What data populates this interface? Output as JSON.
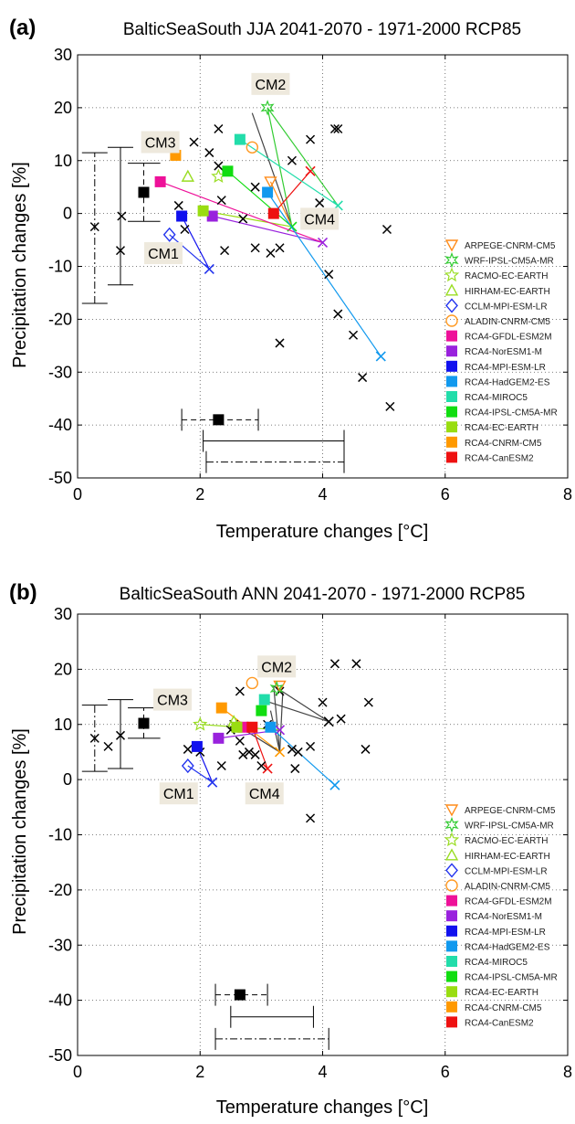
{
  "legend_entries": [
    {
      "name": "ARPEGE-CNRM-CM5",
      "marker": "tri-down-open",
      "color": "#ff8c1a"
    },
    {
      "name": "WRF-IPSL-CM5A-MR",
      "marker": "hexagram-open",
      "color": "#33cc33"
    },
    {
      "name": "RACMO-EC-EARTH",
      "marker": "star-open",
      "color": "#99dd22"
    },
    {
      "name": "HIRHAM-EC-EARTH",
      "marker": "tri-up-open",
      "color": "#99dd22"
    },
    {
      "name": "CCLM-MPI-ESM-LR",
      "marker": "diamond-open",
      "color": "#2233ee"
    },
    {
      "name": "ALADIN-CNRM-CM5",
      "marker": "circle-open",
      "color": "#ff9922"
    },
    {
      "name": "RCA4-GFDL-ESM2M",
      "marker": "square",
      "color": "#ee1199"
    },
    {
      "name": "RCA4-NorESM1-M",
      "marker": "square",
      "color": "#9922dd"
    },
    {
      "name": "RCA4-MPI-ESM-LR",
      "marker": "square",
      "color": "#1111ee"
    },
    {
      "name": "RCA4-HadGEM2-ES",
      "marker": "square",
      "color": "#1199ee"
    },
    {
      "name": "RCA4-MIROC5",
      "marker": "square",
      "color": "#22ddaa"
    },
    {
      "name": "RCA4-IPSL-CM5A-MR",
      "marker": "square",
      "color": "#11dd11"
    },
    {
      "name": "RCA4-EC-EARTH",
      "marker": "square",
      "color": "#99dd11"
    },
    {
      "name": "RCA4-CNRM-CM5",
      "marker": "square",
      "color": "#ff9900"
    },
    {
      "name": "RCA4-CanESM2",
      "marker": "square",
      "color": "#ee1111"
    }
  ],
  "chart_data": [
    {
      "type": "scatter",
      "panel_label": "(a)",
      "title": "BalticSeaSouth JJA 2041-2070 - 1971-2000 RCP85",
      "xlabel": "Temperature changes [°C]",
      "ylabel": "Precipitation changes [%]",
      "xlim": [
        0,
        8
      ],
      "ylim": [
        -50,
        30
      ],
      "xticks": [
        0,
        2,
        4,
        6,
        8
      ],
      "yticks": [
        -50,
        -40,
        -30,
        -20,
        -10,
        0,
        10,
        20,
        30
      ],
      "grid": true,
      "legend_position": "lower-right",
      "gcm_crosses": [
        [
          0.28,
          -2.5
        ],
        [
          0.7,
          -7
        ],
        [
          0.72,
          -0.5
        ],
        [
          1.65,
          1.5
        ],
        [
          1.75,
          -3
        ],
        [
          1.9,
          13.5
        ],
        [
          2.15,
          11.5
        ],
        [
          2.3,
          9
        ],
        [
          2.35,
          2.5
        ],
        [
          2.4,
          -7
        ],
        [
          2.3,
          16
        ],
        [
          2.7,
          -1
        ],
        [
          2.9,
          -6.5
        ],
        [
          2.9,
          5
        ],
        [
          3.15,
          -7.5
        ],
        [
          3.3,
          -6.5
        ],
        [
          3.3,
          -24.5
        ],
        [
          3.5,
          10
        ],
        [
          3.8,
          14
        ],
        [
          3.95,
          2
        ],
        [
          4.2,
          16
        ],
        [
          4.25,
          16
        ],
        [
          4.1,
          -11.5
        ],
        [
          4.25,
          -19
        ],
        [
          4.5,
          -23
        ],
        [
          4.65,
          -31
        ],
        [
          5.05,
          -3
        ],
        [
          5.1,
          -36.5
        ]
      ],
      "gcm_rcm_links": [
        {
          "gcm": [
            2.15,
            -10.5
          ],
          "rcms": [
            [
              1.5,
              -4
            ],
            [
              1.7,
              -0.5
            ]
          ]
        },
        {
          "gcm": [
            3.5,
            -2.5
          ],
          "rcms": [
            [
              2.45,
              8
            ],
            [
              2.85,
              19
            ],
            [
              3.15,
              6
            ],
            [
              2.05,
              0.5
            ],
            [
              3.1,
              20
            ]
          ]
        },
        {
          "gcm": [
            3.8,
            8
          ],
          "rcms": [
            [
              3.2,
              0
            ]
          ]
        },
        {
          "gcm": [
            4,
            -5.5
          ],
          "rcms": [
            [
              2.2,
              -0.5
            ],
            [
              1.35,
              6
            ]
          ]
        },
        {
          "gcm": [
            4.25,
            1.5
          ],
          "rcms": [
            [
              2.65,
              14
            ],
            [
              3.1,
              20
            ]
          ]
        },
        {
          "gcm": [
            4.95,
            -27
          ],
          "rcms": [
            [
              3.1,
              4
            ]
          ]
        }
      ],
      "rcm_points": [
        {
          "model": "ARPEGE-CNRM-CM5",
          "x": 3.15,
          "y": 6
        },
        {
          "model": "WRF-IPSL-CM5A-MR",
          "x": 3.1,
          "y": 20
        },
        {
          "model": "RACMO-EC-EARTH",
          "x": 2.3,
          "y": 7
        },
        {
          "model": "HIRHAM-EC-EARTH",
          "x": 1.8,
          "y": 7
        },
        {
          "model": "CCLM-MPI-ESM-LR",
          "x": 1.5,
          "y": -4
        },
        {
          "model": "ALADIN-CNRM-CM5",
          "x": 2.85,
          "y": 12.5
        },
        {
          "model": "RCA4-GFDL-ESM2M",
          "x": 1.35,
          "y": 6
        },
        {
          "model": "RCA4-NorESM1-M",
          "x": 2.2,
          "y": -0.5
        },
        {
          "model": "RCA4-MPI-ESM-LR",
          "x": 1.7,
          "y": -0.5
        },
        {
          "model": "RCA4-HadGEM2-ES",
          "x": 3.1,
          "y": 4
        },
        {
          "model": "RCA4-MIROC5",
          "x": 2.65,
          "y": 14
        },
        {
          "model": "RCA4-IPSL-CM5A-MR",
          "x": 2.45,
          "y": 8
        },
        {
          "model": "RCA4-EC-EARTH",
          "x": 2.05,
          "y": 0.5
        },
        {
          "model": "RCA4-CNRM-CM5",
          "x": 1.6,
          "y": 11
        },
        {
          "model": "RCA4-CanESM2",
          "x": 3.2,
          "y": 0
        }
      ],
      "cm_labels": [
        {
          "text": "CM1",
          "x": 1.4,
          "y": -7.5
        },
        {
          "text": "CM2",
          "x": 3.15,
          "y": 24.5
        },
        {
          "text": "CM3",
          "x": 1.35,
          "y": 13.5
        },
        {
          "text": "CM4",
          "x": 3.95,
          "y": -1
        }
      ],
      "summary_black_square": {
        "x": 1.08,
        "y": 4,
        "xmin": 0.82,
        "xmax": 1.35,
        "ymin": -1.5,
        "ymax": 9.5,
        "style": "dashed"
      },
      "summary_black_square_temp": {
        "x": 2.3,
        "y": -39,
        "xmin": 1.7,
        "xmax": 2.95,
        "style": "dashed"
      },
      "summary_vbars": [
        {
          "x": 0.28,
          "y": -2.5,
          "ymin": -17,
          "ymax": 11.5,
          "style": "dashdot"
        },
        {
          "x": 0.7,
          "y": -7,
          "ymin": -13.5,
          "ymax": 12.5,
          "style": "solid"
        }
      ],
      "summary_hbars": [
        {
          "x": 3.2,
          "y": -43,
          "xmin": 2.05,
          "xmax": 4.35,
          "style": "solid"
        },
        {
          "x": 3.2,
          "y": -47,
          "xmin": 2.1,
          "xmax": 4.35,
          "style": "dashdot"
        }
      ]
    },
    {
      "type": "scatter",
      "panel_label": "(b)",
      "title": "BalticSeaSouth ANN 2041-2070 - 1971-2000 RCP85",
      "xlabel": "Temperature changes [°C]",
      "ylabel": "Precipitation changes [%]",
      "xlim": [
        0,
        8
      ],
      "ylim": [
        -50,
        30
      ],
      "xticks": [
        0,
        2,
        4,
        6,
        8
      ],
      "yticks": [
        -50,
        -40,
        -30,
        -20,
        -10,
        0,
        10,
        20,
        30
      ],
      "grid": true,
      "legend_position": "lower-right",
      "gcm_crosses": [
        [
          0.28,
          7.5
        ],
        [
          0.5,
          6
        ],
        [
          0.7,
          8
        ],
        [
          1.8,
          5.5
        ],
        [
          2,
          5
        ],
        [
          2.35,
          2.5
        ],
        [
          2.5,
          9
        ],
        [
          2.55,
          10
        ],
        [
          2.65,
          7
        ],
        [
          2.65,
          16
        ],
        [
          2.7,
          4.5
        ],
        [
          2.8,
          5
        ],
        [
          2.9,
          4.5
        ],
        [
          3,
          2.5
        ],
        [
          3.1,
          10
        ],
        [
          3.3,
          16
        ],
        [
          3.5,
          5.5
        ],
        [
          3.55,
          2
        ],
        [
          3.6,
          5
        ],
        [
          3.8,
          6
        ],
        [
          3.8,
          -7
        ],
        [
          4,
          14
        ],
        [
          4.2,
          21
        ],
        [
          4.3,
          11
        ],
        [
          4.55,
          21
        ],
        [
          4.75,
          14
        ],
        [
          4.7,
          5.5
        ]
      ],
      "gcm_rcm_links": [
        {
          "gcm": [
            2.2,
            -0.5
          ],
          "rcms": [
            [
              1.8,
              2.5
            ],
            [
              1.95,
              6
            ]
          ]
        },
        {
          "gcm": [
            3.3,
            5
          ],
          "rcms": [
            [
              2.35,
              13
            ],
            [
              3.2,
              17
            ],
            [
              3.35,
              16
            ],
            [
              2.65,
              9.5
            ],
            [
              3.15,
              12.5
            ]
          ]
        },
        {
          "gcm": [
            3.1,
            2
          ],
          "rcms": [
            [
              2.85,
              9.5
            ]
          ]
        },
        {
          "gcm": [
            3.3,
            9
          ],
          "rcms": [
            [
              2.3,
              7.5
            ],
            [
              2,
              10
            ]
          ]
        },
        {
          "gcm": [
            4.1,
            10.5
          ],
          "rcms": [
            [
              3,
              14.5
            ],
            [
              3.2,
              17
            ]
          ]
        },
        {
          "gcm": [
            4.2,
            -1
          ],
          "rcms": [
            [
              3.15,
              9.5
            ]
          ]
        }
      ],
      "rcm_points": [
        {
          "model": "ARPEGE-CNRM-CM5",
          "x": 3.3,
          "y": 17
        },
        {
          "model": "WRF-IPSL-CM5A-MR",
          "x": 3.25,
          "y": 16.5
        },
        {
          "model": "RACMO-EC-EARTH",
          "x": 2,
          "y": 10
        },
        {
          "model": "HIRHAM-EC-EARTH",
          "x": 2.55,
          "y": 10.5
        },
        {
          "model": "CCLM-MPI-ESM-LR",
          "x": 1.8,
          "y": 2.5
        },
        {
          "model": "ALADIN-CNRM-CM5",
          "x": 2.85,
          "y": 17.5
        },
        {
          "model": "RCA4-GFDL-ESM2M",
          "x": 2.7,
          "y": 9.5
        },
        {
          "model": "RCA4-NorESM1-M",
          "x": 2.3,
          "y": 7.5
        },
        {
          "model": "RCA4-MPI-ESM-LR",
          "x": 1.95,
          "y": 6
        },
        {
          "model": "RCA4-HadGEM2-ES",
          "x": 3.15,
          "y": 9.5
        },
        {
          "model": "RCA4-MIROC5",
          "x": 3.05,
          "y": 14.5
        },
        {
          "model": "RCA4-IPSL-CM5A-MR",
          "x": 3,
          "y": 12.5
        },
        {
          "model": "RCA4-EC-EARTH",
          "x": 2.6,
          "y": 9.5
        },
        {
          "model": "RCA4-CNRM-CM5",
          "x": 2.35,
          "y": 13
        },
        {
          "model": "RCA4-CanESM2",
          "x": 2.85,
          "y": 9.5
        }
      ],
      "cm_labels": [
        {
          "text": "CM1",
          "x": 1.65,
          "y": -2.5
        },
        {
          "text": "CM2",
          "x": 3.25,
          "y": 20.5
        },
        {
          "text": "CM3",
          "x": 1.55,
          "y": 14.5
        },
        {
          "text": "CM4",
          "x": 3.05,
          "y": -2.5
        }
      ],
      "summary_black_square": {
        "x": 1.08,
        "y": 10.2,
        "xmin": 0.82,
        "xmax": 1.35,
        "ymin": 7.5,
        "ymax": 13,
        "style": "dashed"
      },
      "summary_black_square_temp": {
        "x": 2.65,
        "y": -39,
        "xmin": 2.25,
        "xmax": 3.1,
        "style": "dashed"
      },
      "summary_vbars": [
        {
          "x": 0.28,
          "y": 7.5,
          "ymin": 1.5,
          "ymax": 13.5,
          "style": "dashdot"
        },
        {
          "x": 0.7,
          "y": 8,
          "ymin": 2,
          "ymax": 14.5,
          "style": "solid"
        }
      ],
      "summary_hbars": [
        {
          "x": 3.2,
          "y": -43,
          "xmin": 2.5,
          "xmax": 3.85,
          "style": "solid"
        },
        {
          "x": 3.2,
          "y": -47,
          "xmin": 2.25,
          "xmax": 4.1,
          "style": "dashdot"
        }
      ]
    }
  ]
}
